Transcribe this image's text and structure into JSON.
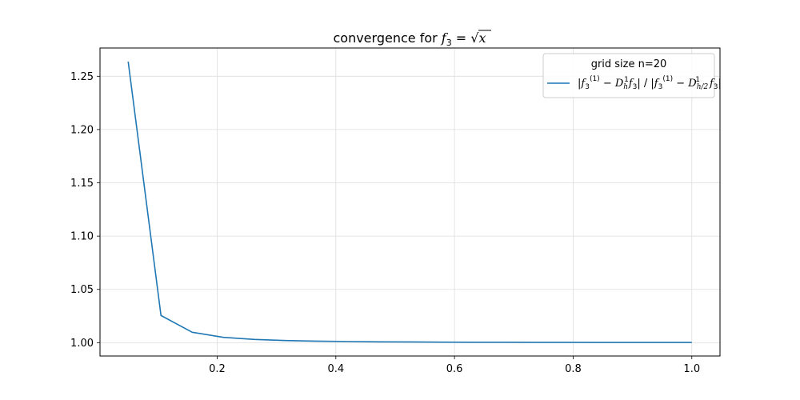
{
  "chart_data": {
    "type": "line",
    "title": "convergence for f_3 = √x",
    "title_parts": {
      "prefix": "convergence for ",
      "f": "f",
      "sub": "3",
      "eq": " = ",
      "sqrt_arg": "x"
    },
    "xlabel": "",
    "ylabel": "",
    "xlim": [
      0.0025,
      1.0475
    ],
    "ylim": [
      0.9875,
      1.2765
    ],
    "grid": true,
    "xticks": [
      0.2,
      0.4,
      0.6,
      0.8,
      1.0
    ],
    "xtick_labels": [
      "0.2",
      "0.4",
      "0.6",
      "0.8",
      "1.0"
    ],
    "yticks": [
      1.0,
      1.05,
      1.1,
      1.15,
      1.2,
      1.25
    ],
    "ytick_labels": [
      "1.00",
      "1.05",
      "1.10",
      "1.15",
      "1.20",
      "1.25"
    ],
    "legend": {
      "placement": "upper-right",
      "title": "grid size n=20",
      "entries": [
        "|f3(1) − Dh1 f3| / |f3(1) − Dh/21 f3|"
      ]
    },
    "series": [
      {
        "name": "|f3(1) − Dh1 f3| / |f3(1) − Dh/21 f3|",
        "color": "#1f77b4",
        "x": [
          0.05,
          0.1053,
          0.1579,
          0.2105,
          0.2632,
          0.3158,
          0.3684,
          0.4211,
          0.4737,
          0.5263,
          0.5789,
          0.6316,
          0.6842,
          0.7368,
          0.7895,
          0.8421,
          0.8947,
          0.9474,
          1.0
        ],
        "values": [
          1.2637,
          1.0255,
          1.0098,
          1.005,
          1.003,
          1.002,
          1.0014,
          1.0011,
          1.0008,
          1.0007,
          1.0005,
          1.0004,
          1.0004,
          1.0003,
          1.0003,
          1.0002,
          1.0002,
          1.0002,
          1.0002
        ]
      }
    ]
  }
}
